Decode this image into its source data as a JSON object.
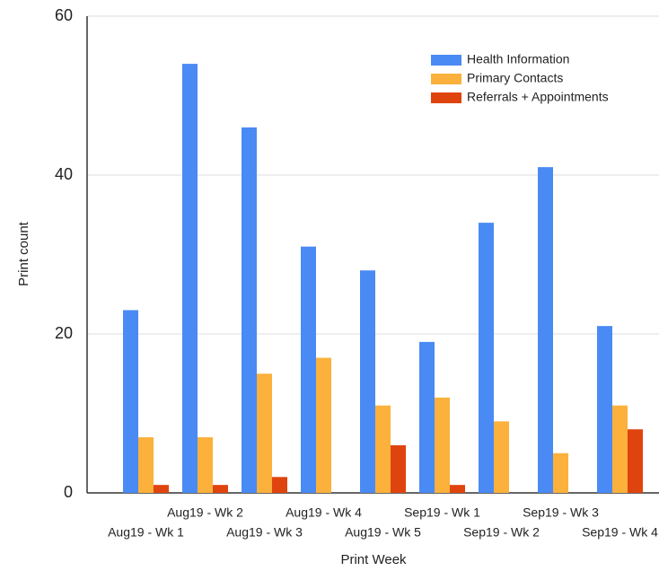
{
  "chart_data": {
    "type": "bar",
    "x_label": "Print Week",
    "y_label": "Print count",
    "categories": [
      "Aug19 - Wk 1",
      "Aug19 - Wk 2",
      "Aug19 - Wk 3",
      "Aug19 - Wk 4",
      "Aug19 - Wk 5",
      "Sep19 - Wk 1",
      "Sep19 - Wk 2",
      "Sep19 - Wk 3",
      "Sep19 - Wk 4"
    ],
    "series": [
      {
        "name": "Health Information",
        "color": "#4a8af4",
        "values": [
          23,
          54,
          46,
          31,
          28,
          19,
          34,
          41,
          21
        ]
      },
      {
        "name": "Primary Contacts",
        "color": "#fbb13c",
        "values": [
          7,
          7,
          15,
          17,
          11,
          12,
          9,
          5,
          11
        ]
      },
      {
        "name": "Referrals + Appointments",
        "color": "#e0440e",
        "values": [
          1,
          1,
          2,
          0,
          6,
          1,
          0,
          0,
          8
        ]
      }
    ],
    "ylim": [
      0,
      60
    ],
    "yticks": [
      0,
      20,
      40,
      60
    ],
    "grid": true,
    "legend": "upper right"
  }
}
